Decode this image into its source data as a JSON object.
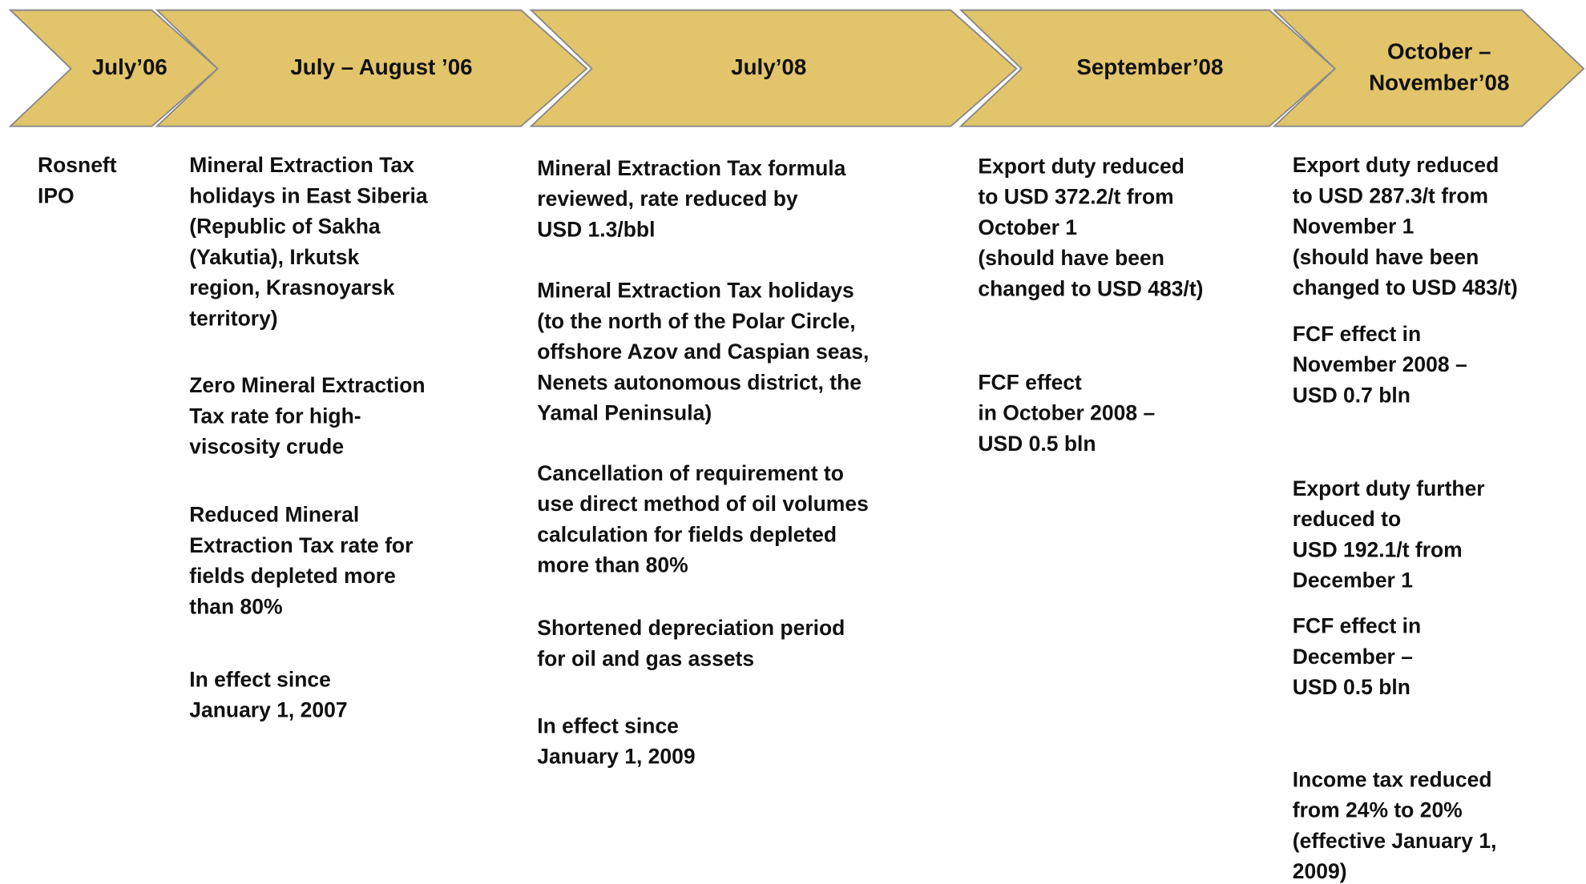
{
  "phases": [
    {
      "label": [
        "July’06"
      ],
      "items": [
        [
          "Rosneft",
          "IPO"
        ]
      ]
    },
    {
      "label": [
        "July – August ’06"
      ],
      "items": [
        [
          "Mineral Extraction Tax",
          "holidays in East Siberia",
          "(Republic of Sakha",
          "(Yakutia), Irkutsk",
          "region, Krasnoyarsk",
          "territory)"
        ],
        [
          "Zero Mineral Extraction",
          "Tax rate for high-",
          "viscosity crude"
        ],
        [
          "Reduced Mineral",
          "Extraction Tax rate for",
          "fields depleted more",
          "than 80%"
        ],
        [
          "In effect since",
          "January 1, 2007"
        ]
      ]
    },
    {
      "label": [
        "July’08"
      ],
      "items": [
        [
          "Mineral Extraction Tax formula",
          "reviewed, rate reduced by",
          "USD 1.3/bbl"
        ],
        [
          "Mineral Extraction Tax holidays",
          "(to the north of the Polar Circle,",
          "offshore Azov and Caspian seas,",
          "Nenets autonomous district, the",
          "Yamal Peninsula)"
        ],
        [
          "Cancellation of requirement to",
          "use direct method of oil volumes",
          "calculation for fields depleted",
          "more than 80%"
        ],
        [
          "Shortened depreciation period",
          "for oil and gas assets"
        ],
        [
          "In effect since",
          "January 1, 2009"
        ]
      ]
    },
    {
      "label": [
        "September’08"
      ],
      "items": [
        [
          "Export duty reduced",
          "to USD 372.2/t from",
          "October 1",
          "(should have been",
          "changed to USD 483/t)"
        ],
        [
          "FCF effect",
          "in October 2008 –",
          "USD 0.5 bln"
        ]
      ]
    },
    {
      "label": [
        "October –",
        "November’08"
      ],
      "items": [
        [
          "Export duty reduced",
          "to USD 287.3/t from",
          "November 1",
          "(should have been",
          "changed to USD 483/t)"
        ],
        [
          "FCF effect in",
          "November 2008 –",
          "USD 0.7 bln"
        ],
        [
          "Export duty further",
          "reduced to",
          "USD 192.1/t from",
          "December 1"
        ],
        [
          "FCF effect in",
          "December –",
          "USD 0.5 bln"
        ],
        [
          "Income tax reduced",
          "from 24% to 20%",
          "(effective January 1,",
          "2009)"
        ]
      ]
    }
  ]
}
